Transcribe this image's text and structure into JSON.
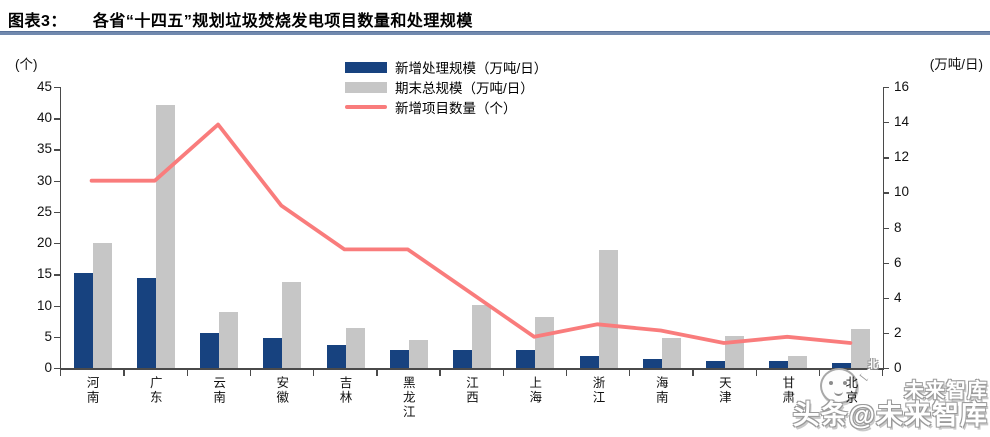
{
  "header": {
    "prefix": "图表3：",
    "title": "各省“十四五”规划垃圾焚烧发电项目数量和处理规模"
  },
  "chart_data": {
    "type": "bar",
    "subtype": "dual-axis bar and line combo",
    "categories": [
      "河南",
      "广东",
      "云南",
      "安徽",
      "吉林",
      "黑龙江",
      "江西",
      "上海",
      "浙江",
      "海南",
      "天津",
      "甘肃",
      "北京"
    ],
    "series": [
      {
        "name": "新增处理规模（万吨/日）",
        "type": "bar",
        "axis": "right",
        "color": "#17427f",
        "values": [
          5.4,
          5.1,
          2.0,
          1.7,
          1.3,
          1.0,
          1.0,
          1.0,
          0.7,
          0.5,
          0.4,
          0.4,
          0.3
        ]
      },
      {
        "name": "期末总规模（万吨/日）",
        "type": "bar",
        "axis": "right",
        "color": "#c6c6c6",
        "values": [
          7.1,
          15.0,
          3.2,
          4.9,
          2.3,
          1.6,
          3.6,
          2.9,
          6.7,
          1.7,
          1.8,
          0.7,
          2.2
        ]
      },
      {
        "name": "新增项目数量（个）",
        "type": "line",
        "axis": "left",
        "color": "#f97c7c",
        "values": [
          30,
          30,
          39,
          26,
          19,
          19,
          12,
          5,
          7,
          6,
          4,
          5,
          4
        ]
      }
    ],
    "left_axis": {
      "unit": "(个)",
      "min": 0,
      "max": 45,
      "step": 5,
      "ticks": [
        0,
        5,
        10,
        15,
        20,
        25,
        30,
        35,
        40,
        45
      ]
    },
    "right_axis": {
      "unit": "(万吨/日)",
      "min": 0,
      "max": 16,
      "step": 2,
      "ticks": [
        0,
        2,
        4,
        6,
        8,
        10,
        12,
        14,
        16
      ]
    },
    "grid": false,
    "legend_position": "top-center"
  },
  "watermark": {
    "line1": "未来智库",
    "line2": "头条@未来智库",
    "compass_label": "北"
  },
  "colors": {
    "bar_blue": "#17427f",
    "bar_gray": "#c6c6c6",
    "line_red": "#f97c7c",
    "title_rule": "#7189ae",
    "axis": "#4a4a4a"
  }
}
